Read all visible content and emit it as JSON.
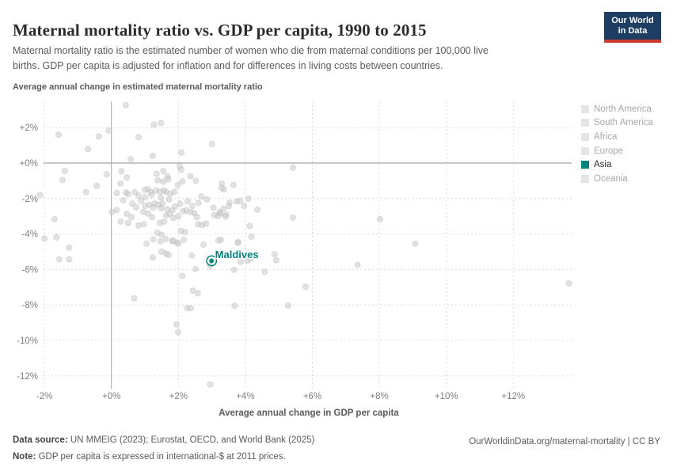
{
  "header": {
    "title": "Maternal mortality ratio vs. GDP per capita, 1990 to 2015",
    "subtitle_line1": "Maternal mortality ratio is the estimated number of women who die from maternal conditions per 100,000 live",
    "subtitle_line2": "births. GDP per capita is adjusted for inflation and for differences in living costs between countries.",
    "logo": {
      "line1": "Our World",
      "line2": "in Data"
    }
  },
  "chart_data": {
    "type": "scatter",
    "title": "Maternal mortality ratio vs. GDP per capita, 1990 to 2015",
    "xlabel": "Average annual change in GDP per capita",
    "ylabel": "Average annual change in estimated maternal mortality ratio",
    "xlim": [
      -2.6,
      14.2
    ],
    "ylim": [
      -12.9,
      3.5
    ],
    "grid": "dashed",
    "x_ticks": [
      {
        "value": -2,
        "label": "-2%"
      },
      {
        "value": 0,
        "label": "+0%"
      },
      {
        "value": 2,
        "label": "+2%"
      },
      {
        "value": 4,
        "label": "+4%"
      },
      {
        "value": 6,
        "label": "+6%"
      },
      {
        "value": 8,
        "label": "+8%"
      },
      {
        "value": 10,
        "label": "+10%"
      },
      {
        "value": 12,
        "label": "+12%"
      }
    ],
    "y_ticks": [
      {
        "value": 2,
        "label": "+2%"
      },
      {
        "value": 0,
        "label": "+0%"
      },
      {
        "value": -2,
        "label": "-2%"
      },
      {
        "value": -4,
        "label": "-4%"
      },
      {
        "value": -6,
        "label": "-6%"
      },
      {
        "value": -8,
        "label": "-8%"
      },
      {
        "value": -10,
        "label": "-10%"
      },
      {
        "value": -12,
        "label": "-12%"
      }
    ],
    "dot_color": "#cbcbcb",
    "series": [
      {
        "name": "countries-unfocused",
        "points": [
          [
            0.43,
            3.27
          ],
          [
            1.27,
            2.17
          ],
          [
            1.48,
            2.26
          ],
          [
            -0.38,
            1.5
          ],
          [
            -0.08,
            1.84
          ],
          [
            -1.58,
            1.6
          ],
          [
            0.81,
            1.47
          ],
          [
            -0.7,
            0.79
          ],
          [
            3.0,
            1.07
          ],
          [
            0.58,
            0.22
          ],
          [
            1.23,
            0.41
          ],
          [
            2.09,
            0.59
          ],
          [
            5.42,
            -0.26
          ],
          [
            -2.13,
            -1.81
          ],
          [
            -1.39,
            -0.44
          ],
          [
            -1.46,
            -0.96
          ],
          [
            -0.76,
            -1.64
          ],
          [
            -0.44,
            -1.28
          ],
          [
            -1.7,
            -3.16
          ],
          [
            -2.0,
            -4.26
          ],
          [
            -1.64,
            -4.19
          ],
          [
            -1.26,
            -4.77
          ],
          [
            -1.56,
            -5.43
          ],
          [
            -1.26,
            -5.43
          ],
          [
            -0.14,
            -0.63
          ],
          [
            0.3,
            -0.47
          ],
          [
            0.46,
            -0.81
          ],
          [
            0.27,
            -1.15
          ],
          [
            1.35,
            -0.6
          ],
          [
            1.55,
            -0.45
          ],
          [
            1.67,
            -0.75
          ],
          [
            1.38,
            -0.97
          ],
          [
            1.55,
            -1.05
          ],
          [
            1.7,
            -0.91
          ],
          [
            2.04,
            -0.18
          ],
          [
            2.08,
            -0.37
          ],
          [
            2.36,
            -0.74
          ],
          [
            2.12,
            -1.03
          ],
          [
            2.52,
            -1.0
          ],
          [
            1.98,
            -1.25
          ],
          [
            3.3,
            -1.15
          ],
          [
            3.64,
            -1.23
          ],
          [
            3.36,
            -1.48
          ],
          [
            3.29,
            -1.4
          ],
          [
            0.16,
            -1.69
          ],
          [
            0.44,
            -1.66
          ],
          [
            0.7,
            -1.64
          ],
          [
            0.5,
            -1.76
          ],
          [
            0.81,
            -1.84
          ],
          [
            1.0,
            -1.51
          ],
          [
            1.09,
            -1.47
          ],
          [
            1.17,
            -1.62
          ],
          [
            1.33,
            -1.54
          ],
          [
            1.45,
            -1.62
          ],
          [
            1.57,
            -1.54
          ],
          [
            1.64,
            -1.64
          ],
          [
            1.76,
            -1.73
          ],
          [
            1.88,
            -1.62
          ],
          [
            1.01,
            -1.91
          ],
          [
            1.2,
            -1.78
          ],
          [
            1.48,
            -1.95
          ],
          [
            1.72,
            -2.05
          ],
          [
            2.69,
            -1.88
          ],
          [
            2.85,
            -2.05
          ],
          [
            4.09,
            -2.01
          ],
          [
            0.89,
            -2.13
          ],
          [
            0.35,
            -2.1
          ],
          [
            0.62,
            -2.28
          ],
          [
            0.74,
            -2.5
          ],
          [
            1.01,
            -2.42
          ],
          [
            1.13,
            -2.35
          ],
          [
            1.29,
            -2.28
          ],
          [
            1.41,
            -2.35
          ],
          [
            1.53,
            -2.28
          ],
          [
            1.25,
            -2.52
          ],
          [
            1.48,
            -2.55
          ],
          [
            1.66,
            -2.6
          ],
          [
            1.82,
            -2.66
          ],
          [
            1.9,
            -2.45
          ],
          [
            2.05,
            -2.3
          ],
          [
            2.28,
            -2.15
          ],
          [
            2.42,
            -2.42
          ],
          [
            2.6,
            -2.25
          ],
          [
            1.64,
            -2.94
          ],
          [
            1.75,
            -2.86
          ],
          [
            0.95,
            -2.75
          ],
          [
            1.1,
            -2.85
          ],
          [
            2.0,
            -3.0
          ],
          [
            0.16,
            -2.64
          ],
          [
            0.02,
            -2.76
          ],
          [
            0.46,
            -2.86
          ],
          [
            2.14,
            -2.72
          ],
          [
            2.24,
            -2.67
          ],
          [
            2.36,
            -2.76
          ],
          [
            2.47,
            -2.82
          ],
          [
            3.07,
            -2.94
          ],
          [
            3.23,
            -2.76
          ],
          [
            3.35,
            -2.57
          ],
          [
            3.42,
            -2.91
          ],
          [
            3.05,
            -2.52
          ],
          [
            3.74,
            -2.17
          ],
          [
            3.53,
            -2.23
          ],
          [
            3.84,
            -2.13
          ],
          [
            3.96,
            -2.41
          ],
          [
            3.5,
            -2.42
          ],
          [
            3.41,
            -3.01
          ],
          [
            3.25,
            -2.85
          ],
          [
            3.19,
            -2.98
          ],
          [
            4.36,
            -2.63
          ],
          [
            0.28,
            -3.3
          ],
          [
            0.5,
            -3.38
          ],
          [
            0.81,
            -3.52
          ],
          [
            0.97,
            -3.45
          ],
          [
            1.22,
            -3.05
          ],
          [
            0.6,
            -3.05
          ],
          [
            1.45,
            -3.38
          ],
          [
            1.57,
            -3.3
          ],
          [
            1.85,
            -3.1
          ],
          [
            2.59,
            -3.45
          ],
          [
            2.71,
            -3.49
          ],
          [
            2.83,
            -3.41
          ],
          [
            2.55,
            -3.05
          ],
          [
            5.42,
            -3.07
          ],
          [
            8.02,
            -3.17
          ],
          [
            4.13,
            -3.55
          ],
          [
            1.37,
            -3.93
          ],
          [
            2.08,
            -3.82
          ],
          [
            2.2,
            -3.89
          ],
          [
            1.5,
            -4.04
          ],
          [
            1.63,
            -4.29
          ],
          [
            1.82,
            -4.41
          ],
          [
            1.96,
            -4.48
          ],
          [
            1.25,
            -4.3
          ],
          [
            1.46,
            -4.41
          ],
          [
            1.84,
            -4.36
          ],
          [
            2.0,
            -4.55
          ],
          [
            2.16,
            -4.33
          ],
          [
            1.05,
            -4.55
          ],
          [
            3.27,
            -4.33
          ],
          [
            3.78,
            -4.45
          ],
          [
            4.18,
            -4.16
          ],
          [
            3.2,
            -4.37
          ],
          [
            2.75,
            -4.6
          ],
          [
            1.5,
            -4.99
          ],
          [
            3.78,
            -4.51
          ],
          [
            2.4,
            -5.2
          ],
          [
            1.63,
            -5.1
          ],
          [
            1.71,
            -5.18
          ],
          [
            1.23,
            -5.33
          ],
          [
            3.86,
            -5.58
          ],
          [
            4.06,
            -5.51
          ],
          [
            4.15,
            -5.4
          ],
          [
            4.87,
            -5.14
          ],
          [
            4.92,
            -5.48
          ],
          [
            3.66,
            -6.02
          ],
          [
            4.58,
            -6.13
          ],
          [
            2.51,
            -5.98
          ],
          [
            2.95,
            -5.8
          ],
          [
            7.35,
            -5.73
          ],
          [
            2.12,
            -6.36
          ],
          [
            9.07,
            -4.54
          ],
          [
            0.68,
            -7.63
          ],
          [
            2.43,
            -7.19
          ],
          [
            2.58,
            -7.34
          ],
          [
            2.26,
            -8.18
          ],
          [
            2.37,
            -8.18
          ],
          [
            5.8,
            -6.97
          ],
          [
            5.28,
            -8.03
          ],
          [
            3.68,
            -8.05
          ],
          [
            1.94,
            -9.1
          ],
          [
            1.99,
            -9.54
          ],
          [
            2.95,
            -12.48
          ],
          [
            13.66,
            -6.78
          ]
        ]
      }
    ],
    "highlight": {
      "label": "Maldives",
      "x": 2.99,
      "y": -5.51,
      "color": "#00847e",
      "region": "Asia"
    }
  },
  "legend": {
    "items": [
      {
        "label": "North America",
        "active": false,
        "swatch_color": "#e4e4e4",
        "text_color": "#a8a8a8"
      },
      {
        "label": "South America",
        "active": false,
        "swatch_color": "#e4e4e4",
        "text_color": "#a8a8a8"
      },
      {
        "label": "Africa",
        "active": false,
        "swatch_color": "#e4e4e4",
        "text_color": "#a8a8a8"
      },
      {
        "label": "Europe",
        "active": false,
        "swatch_color": "#e4e4e4",
        "text_color": "#a8a8a8"
      },
      {
        "label": "Asia",
        "active": true,
        "swatch_color": "#00847e",
        "text_color": "#2d2d2d"
      },
      {
        "label": "Oceania",
        "active": false,
        "swatch_color": "#e4e4e4",
        "text_color": "#a8a8a8"
      }
    ]
  },
  "footer": {
    "source_label": "Data source:",
    "source_text": " UN MMEIG (2023); Eurostat, OECD, and World Bank (2025)",
    "note_label": "Note:",
    "note_text": " GDP per capita is expressed in international-$ at 2011 prices.",
    "link": "OurWorldinData.org/maternal-mortality | CC BY"
  },
  "colors": {
    "accent": "#00847e",
    "logo_bg": "#1d3d63",
    "logo_stripe": "#cc3a31",
    "dot": "#cbcbcb"
  }
}
